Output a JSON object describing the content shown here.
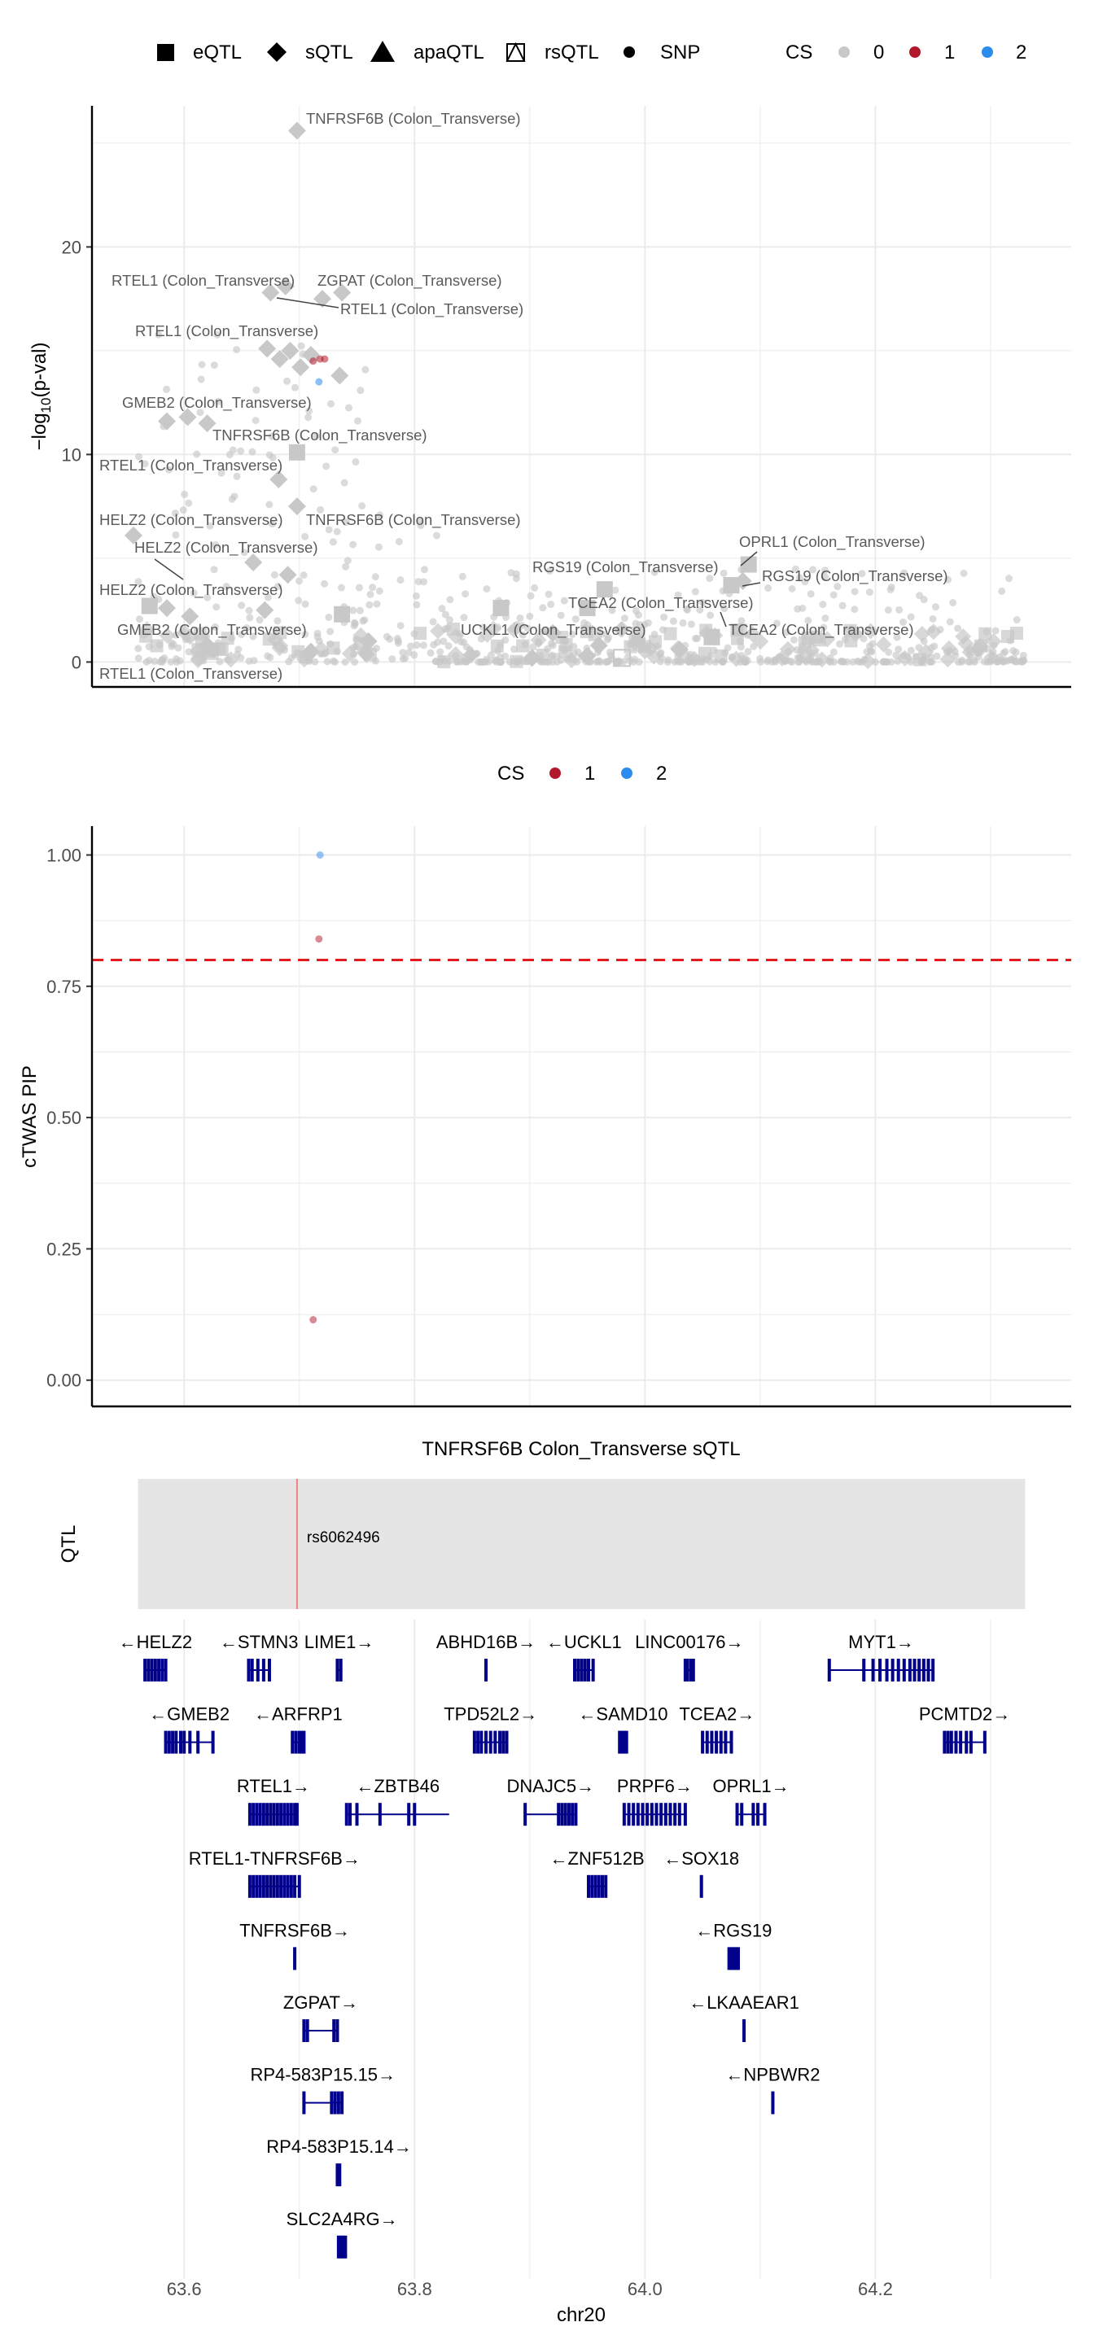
{
  "colors": {
    "cs0": "#c8c8c8",
    "cs1": "#b2182b",
    "cs2": "#2b8cee",
    "gene": "#00008b",
    "threshold": "#e41a1c",
    "qtl_bg": "#e5e5e5",
    "qtl_line": "#f08080",
    "grid": "#ebebeb",
    "label_gray": "#5a5a5a"
  },
  "legend_top": {
    "shapes": [
      "eQTL",
      "sQTL",
      "apaQTL",
      "rsQTL",
      "SNP"
    ],
    "cs_title": "CS",
    "cs_values": [
      "0",
      "1",
      "2"
    ]
  },
  "legend_mid": {
    "cs_title": "CS",
    "cs_values": [
      "1",
      "2"
    ]
  },
  "x_axis": {
    "label": "chr20",
    "ticks": [
      "63.6",
      "63.8",
      "64.0",
      "64.2"
    ],
    "range": [
      63.52,
      64.37
    ]
  },
  "panel_a": {
    "ylabel_main": "−log",
    "ylabel_sub": "10",
    "ylabel_tail": "(p-val)",
    "y_ticks": [
      "0",
      "10",
      "20"
    ],
    "y_range": [
      -1.2,
      26.8
    ]
  },
  "panel_b": {
    "ylabel": "cTWAS PIP",
    "y_ticks": [
      "0.00",
      "0.25",
      "0.50",
      "0.75",
      "1.00"
    ],
    "y_range": [
      -0.05,
      1.055
    ]
  },
  "qtl_panel": {
    "title": "TNFRSF6B Colon_Transverse sQTL",
    "ylabel": "QTL",
    "snp_label": "rs6062496"
  },
  "chart_data": [
    {
      "type": "scatter",
      "xlabel": "chr20",
      "ylabel": "−log10(p-val)",
      "xlim": [
        63.52,
        64.37
      ],
      "ylim": [
        -1.2,
        26.8
      ],
      "grid": true,
      "legend_placement": "top",
      "series": [
        {
          "name": "sQTL",
          "points": [
            [
              63.698,
              25.6
            ],
            [
              63.675,
              17.8
            ],
            [
              63.688,
              18.1
            ],
            [
              63.72,
              17.5
            ],
            [
              63.737,
              17.8
            ],
            [
              63.683,
              14.6
            ],
            [
              63.692,
              15.0
            ],
            [
              63.701,
              14.2
            ],
            [
              63.672,
              15.1
            ],
            [
              63.71,
              14.8
            ],
            [
              63.735,
              13.8
            ],
            [
              63.603,
              11.8
            ],
            [
              63.62,
              11.5
            ],
            [
              63.585,
              11.6
            ],
            [
              63.556,
              6.1
            ],
            [
              63.585,
              2.6
            ],
            [
              63.605,
              2.2
            ],
            [
              63.67,
              2.5
            ],
            [
              63.69,
              4.2
            ],
            [
              63.66,
              4.8
            ],
            [
              63.698,
              7.5
            ],
            [
              63.682,
              8.8
            ],
            [
              63.62,
              0.8
            ],
            [
              63.71,
              0.5
            ],
            [
              63.76,
              1.0
            ],
            [
              63.902,
              0.2
            ],
            [
              63.96,
              0.8
            ],
            [
              64.085,
              3.9
            ],
            [
              64.03,
              0.6
            ],
            [
              63.95,
              0.3
            ],
            [
              63.92,
              1.4
            ]
          ]
        },
        {
          "name": "eQTL",
          "points": [
            [
              63.698,
              10.1
            ],
            [
              63.57,
              2.7
            ],
            [
              63.737,
              2.3
            ],
            [
              63.875,
              2.6
            ],
            [
              63.965,
              3.5
            ],
            [
              63.95,
              2.6
            ],
            [
              64.058,
              1.2
            ],
            [
              64.09,
              4.7
            ],
            [
              64.075,
              3.7
            ]
          ]
        },
        {
          "name": "rsQTL",
          "points": [
            [
              63.98,
              0.2
            ]
          ]
        },
        {
          "name": "CS 1",
          "points": [
            [
              63.718,
              14.6
            ],
            [
              63.722,
              14.6
            ],
            [
              63.712,
              14.5
            ]
          ]
        },
        {
          "name": "CS 2",
          "points": [
            [
              63.717,
              13.5
            ]
          ]
        }
      ],
      "annotations": [
        {
          "text": "TNFRSF6B (Colon_Transverse)",
          "x": 63.698,
          "y": 25.6
        },
        {
          "text": "RTEL1 (Colon_Transverse)",
          "x": 63.675,
          "y": 17.8
        },
        {
          "text": "ZGPAT (Colon_Transverse)",
          "x": 63.737,
          "y": 17.8
        },
        {
          "text": "RTEL1 (Colon_Transverse)",
          "x": 63.688,
          "y": 18.1
        },
        {
          "text": "RTEL1 (Colon_Transverse)",
          "x": 63.683,
          "y": 14.6
        },
        {
          "text": "GMEB2 (Colon_Transverse)",
          "x": 63.603,
          "y": 11.8
        },
        {
          "text": "TNFRSF6B (Colon_Transverse)",
          "x": 63.698,
          "y": 10.1
        },
        {
          "text": "RTEL1 (Colon_Transverse)",
          "x": 63.682,
          "y": 8.8
        },
        {
          "text": "HELZ2 (Colon_Transverse)",
          "x": 63.556,
          "y": 6.1
        },
        {
          "text": "TNFRSF6B (Colon_Transverse)",
          "x": 63.698,
          "y": 7.5
        },
        {
          "text": "HELZ2 (Colon_Transverse)",
          "x": 63.585,
          "y": 4.0
        },
        {
          "text": "HELZ2 (Colon_Transverse)",
          "x": 63.585,
          "y": 2.6
        },
        {
          "text": "GMEB2 (Colon_Transverse)",
          "x": 63.62,
          "y": 0.8
        },
        {
          "text": "RTEL1 (Colon_Transverse)",
          "x": 63.67,
          "y": -0.5
        },
        {
          "text": "OPRL1 (Colon_Transverse)",
          "x": 64.09,
          "y": 4.7
        },
        {
          "text": "RGS19 (Colon_Transverse)",
          "x": 63.965,
          "y": 3.5
        },
        {
          "text": "RGS19 (Colon_Transverse)",
          "x": 64.075,
          "y": 3.7
        },
        {
          "text": "TCEA2 (Colon_Transverse)",
          "x": 64.058,
          "y": 1.2
        },
        {
          "text": "UCKL1 (Colon_Transverse)",
          "x": 63.902,
          "y": 0.2
        },
        {
          "text": "TCEA2 (Colon_Transverse)",
          "x": 64.058,
          "y": 0.5
        }
      ]
    },
    {
      "type": "scatter",
      "xlabel": "chr20",
      "ylabel": "cTWAS PIP",
      "xlim": [
        63.52,
        64.37
      ],
      "ylim": [
        -0.05,
        1.055
      ],
      "threshold": 0.8,
      "grid": true,
      "legend_placement": "top",
      "series": [
        {
          "name": "1",
          "points": [
            [
              63.717,
              0.84
            ],
            [
              63.712,
              0.115
            ]
          ]
        },
        {
          "name": "2",
          "points": [
            [
              63.718,
              1.0
            ]
          ]
        }
      ]
    }
  ],
  "genes": [
    {
      "name": "←HELZ2",
      "start": 63.566,
      "end": 63.584,
      "row": 0,
      "exons": [
        63.566,
        63.569,
        63.572,
        63.575,
        63.578,
        63.581,
        63.584
      ]
    },
    {
      "name": "←STMN3",
      "start": 63.656,
      "end": 63.674,
      "row": 0,
      "exons": [
        63.656,
        63.659,
        63.664,
        63.669,
        63.674
      ]
    },
    {
      "name": "LIME1→",
      "start": 63.733,
      "end": 63.736,
      "row": 0,
      "exons": [
        63.733,
        63.736
      ]
    },
    {
      "name": "ABHD16B→",
      "start": 63.861,
      "end": 63.863,
      "row": 0,
      "exons": [
        63.862
      ]
    },
    {
      "name": "←UCKL1",
      "start": 63.939,
      "end": 63.955,
      "row": 0,
      "exons": [
        63.939,
        63.942,
        63.945,
        63.948,
        63.951,
        63.955
      ]
    },
    {
      "name": "LINC00176→",
      "start": 64.035,
      "end": 64.042,
      "row": 0,
      "exons": [
        64.035,
        64.037,
        64.04,
        64.042
      ]
    },
    {
      "name": "MYT1→",
      "start": 64.16,
      "end": 64.25,
      "row": 0,
      "exons": [
        64.16,
        64.19,
        64.198,
        64.204,
        64.21,
        64.215,
        64.22,
        64.225,
        64.23,
        64.234,
        64.238,
        64.242,
        64.246,
        64.25
      ]
    },
    {
      "name": "←GMEB2",
      "start": 63.584,
      "end": 63.625,
      "row": 1,
      "exons": [
        63.584,
        63.587,
        63.59,
        63.593,
        63.597,
        63.6,
        63.605,
        63.612,
        63.625
      ]
    },
    {
      "name": "←ARFRP1",
      "start": 63.694,
      "end": 63.704,
      "row": 1,
      "exons": [
        63.694,
        63.697,
        63.7,
        63.702,
        63.704
      ]
    },
    {
      "name": "TPD52L2→",
      "start": 63.852,
      "end": 63.88,
      "row": 1,
      "exons": [
        63.852,
        63.855,
        63.858,
        63.862,
        63.866,
        63.87,
        63.874,
        63.877,
        63.88
      ]
    },
    {
      "name": "←SAMD10",
      "start": 63.978,
      "end": 63.984,
      "row": 1,
      "exons": [
        63.978,
        63.98,
        63.982,
        63.984
      ]
    },
    {
      "name": "TCEA2→",
      "start": 64.05,
      "end": 64.075,
      "row": 1,
      "exons": [
        64.05,
        64.054,
        64.058,
        64.062,
        64.066,
        64.07,
        64.075
      ]
    },
    {
      "name": "PCMTD2→",
      "start": 64.26,
      "end": 64.295,
      "row": 1,
      "exons": [
        64.26,
        64.263,
        64.266,
        64.27,
        64.274,
        64.279,
        64.283,
        64.295
      ]
    },
    {
      "name": "RTEL1→",
      "start": 63.657,
      "end": 63.698,
      "row": 2,
      "exons": [
        63.657,
        63.66,
        63.663,
        63.666,
        63.669,
        63.672,
        63.675,
        63.678,
        63.681,
        63.684,
        63.687,
        63.69,
        63.693,
        63.696,
        63.698
      ]
    },
    {
      "name": "←ZBTB46",
      "start": 63.741,
      "end": 63.83,
      "row": 2,
      "exons": [
        63.741,
        63.744,
        63.75,
        63.77,
        63.795,
        63.8
      ]
    },
    {
      "name": "DNAJC5→",
      "start": 63.896,
      "end": 63.94,
      "row": 2,
      "exons": [
        63.896,
        63.925,
        63.928,
        63.931,
        63.934,
        63.937,
        63.94
      ]
    },
    {
      "name": "PRPF6→",
      "start": 63.982,
      "end": 64.035,
      "row": 2,
      "exons": [
        63.982,
        63.986,
        63.99,
        63.994,
        63.998,
        64.002,
        64.006,
        64.01,
        64.014,
        64.018,
        64.022,
        64.026,
        64.03,
        64.035
      ]
    },
    {
      "name": "OPRL1→",
      "start": 64.08,
      "end": 64.104,
      "row": 2,
      "exons": [
        64.08,
        64.084,
        64.094,
        64.098,
        64.104
      ]
    },
    {
      "name": "RTEL1-TNFRSF6B→",
      "start": 63.657,
      "end": 63.7,
      "row": 3,
      "exons": [
        63.657,
        63.66,
        63.663,
        63.666,
        63.669,
        63.672,
        63.675,
        63.678,
        63.681,
        63.684,
        63.687,
        63.69,
        63.693,
        63.696,
        63.7
      ]
    },
    {
      "name": "←ZNF512B",
      "start": 63.951,
      "end": 63.966,
      "row": 3,
      "exons": [
        63.951,
        63.954,
        63.957,
        63.96,
        63.963,
        63.966
      ]
    },
    {
      "name": "←SOX18",
      "start": 64.048,
      "end": 64.05,
      "row": 3,
      "exons": [
        64.049
      ]
    },
    {
      "name": "TNFRSF6B→",
      "start": 63.695,
      "end": 63.697,
      "row": 4,
      "exons": [
        63.696
      ]
    },
    {
      "name": "←RGS19",
      "start": 64.073,
      "end": 64.081,
      "row": 4,
      "exons": [
        64.073,
        64.075,
        64.077,
        64.079,
        64.081
      ]
    },
    {
      "name": "ZGPAT→",
      "start": 63.704,
      "end": 63.733,
      "row": 5,
      "exons": [
        63.704,
        63.707,
        63.73,
        63.733
      ]
    },
    {
      "name": "←LKAAEAR1",
      "start": 64.085,
      "end": 64.087,
      "row": 5,
      "exons": [
        64.086
      ]
    },
    {
      "name": "RP4-583P15.15→",
      "start": 63.704,
      "end": 63.737,
      "row": 6,
      "exons": [
        63.704,
        63.728,
        63.731,
        63.734,
        63.737
      ]
    },
    {
      "name": "←NPBWR2",
      "start": 64.11,
      "end": 64.112,
      "row": 6,
      "exons": [
        64.111
      ]
    },
    {
      "name": "RP4-583P15.14→",
      "start": 63.733,
      "end": 63.736,
      "row": 7,
      "exons": [
        63.733,
        63.735
      ]
    },
    {
      "name": "SLC2A4RG→",
      "start": 63.734,
      "end": 63.74,
      "row": 8,
      "exons": [
        63.734,
        63.736,
        63.738,
        63.74
      ]
    }
  ],
  "qtl": {
    "region": [
      63.56,
      64.33
    ],
    "snp_pos": 63.698
  }
}
